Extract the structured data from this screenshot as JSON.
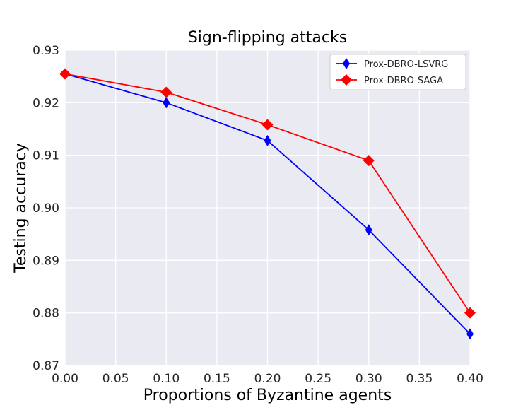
{
  "chart_data": {
    "type": "line",
    "title": "Sign-flipping attacks",
    "xlabel": "Proportions of Byzantine agents",
    "ylabel": "Testing accuracy",
    "xlim": [
      0.0,
      0.4
    ],
    "ylim": [
      0.87,
      0.93
    ],
    "xticks": [
      "0.00",
      "0.05",
      "0.10",
      "0.15",
      "0.20",
      "0.25",
      "0.30",
      "0.35",
      "0.40"
    ],
    "yticks": [
      "0.87",
      "0.88",
      "0.89",
      "0.90",
      "0.91",
      "0.92",
      "0.93"
    ],
    "grid": true,
    "legend_position": "top-right",
    "x": [
      0.0,
      0.1,
      0.2,
      0.3,
      0.4
    ],
    "series": [
      {
        "name": "Prox-DBRO-LSVRG",
        "color": "#0000ff",
        "marker": "thin-diamond",
        "values": [
          0.9255,
          0.92,
          0.9128,
          0.8958,
          0.876
        ]
      },
      {
        "name": "Prox-DBRO-SAGA",
        "color": "#ff0000",
        "marker": "diamond",
        "values": [
          0.9255,
          0.922,
          0.9158,
          0.909,
          0.88
        ]
      }
    ],
    "colors": {
      "plot_background": "#eaeaf2",
      "grid": "#ffffff"
    }
  }
}
